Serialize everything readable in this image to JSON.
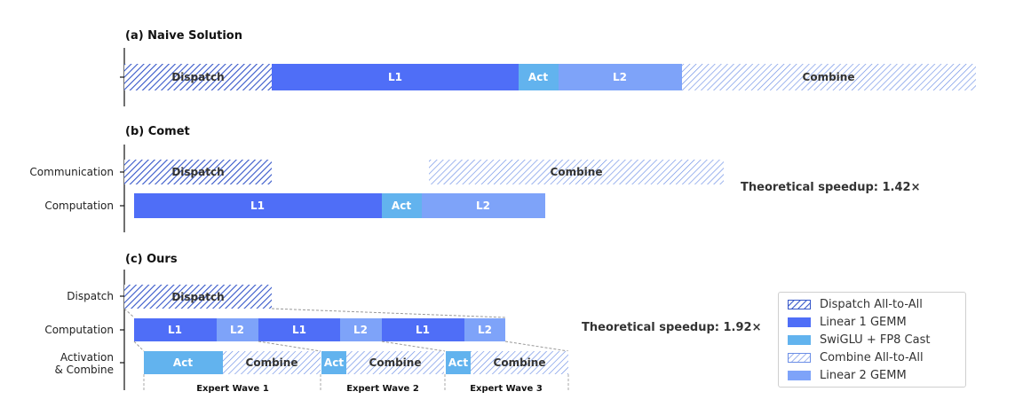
{
  "colors": {
    "dispatch": "#3556c9",
    "l1": "#4f6ef7",
    "act": "#62b3ee",
    "l2": "#7ea3f9",
    "combine": "#6b8ee6"
  },
  "panels": {
    "a": {
      "title": "(a) Naive Solution"
    },
    "b": {
      "title": "(b) Comet",
      "rows": [
        "Communication",
        "Computation"
      ],
      "speedup": "Theoretical speedup: 1.42×"
    },
    "c": {
      "title": "(c) Ours",
      "rows": [
        "Dispatch",
        "Computation",
        "Activation",
        "& Combine"
      ],
      "speedup": "Theoretical speedup: 1.92×",
      "waves": [
        "Expert Wave 1",
        "Expert Wave 2",
        "Expert Wave 3"
      ]
    }
  },
  "labels": {
    "dispatch": "Dispatch",
    "l1": "L1",
    "act": "Act",
    "l2": "L2",
    "combine": "Combine"
  },
  "legend": [
    {
      "label": "Dispatch All-to-All",
      "kind": "dispatch"
    },
    {
      "label": "Linear 1 GEMM",
      "kind": "l1"
    },
    {
      "label": "SwiGLU + FP8 Cast",
      "kind": "act"
    },
    {
      "label": "Combine All-to-All",
      "kind": "combine"
    },
    {
      "label": "Linear 2 GEMM",
      "kind": "l2"
    }
  ]
}
